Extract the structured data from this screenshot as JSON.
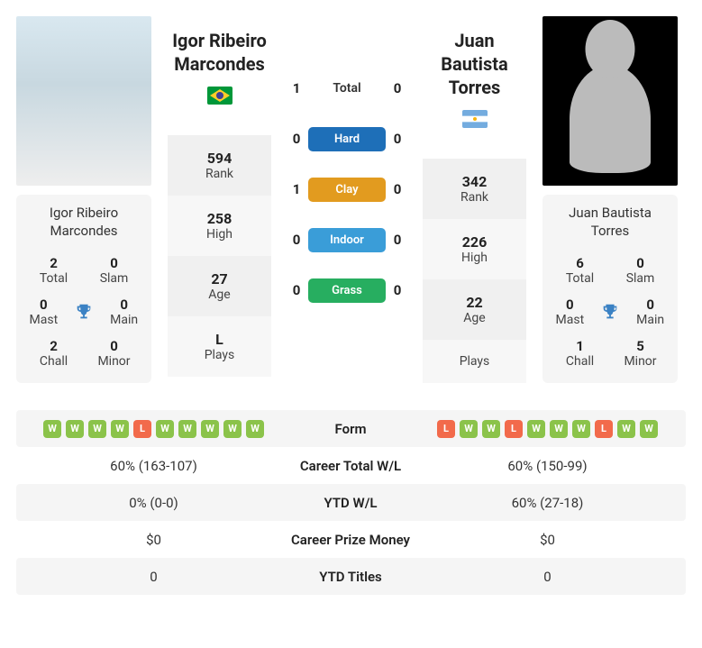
{
  "player1": {
    "name": "Igor Ribeiro Marcondes",
    "flag": {
      "country": "brazil",
      "colors": {
        "green": "#009739",
        "yellow": "#ffcc29",
        "blue": "#3e4095"
      }
    },
    "titles": {
      "total": 2,
      "slam": 0,
      "mast": 0,
      "main": 0,
      "chall": 2,
      "minor": 0
    },
    "rank": 594,
    "high": 258,
    "age": 27,
    "plays": "L",
    "form": [
      "W",
      "W",
      "W",
      "W",
      "L",
      "W",
      "W",
      "W",
      "W",
      "W"
    ],
    "career_wl": "60% (163-107)",
    "ytd_wl": "0% (0-0)",
    "career_prize": "$0",
    "ytd_titles": 0
  },
  "player2": {
    "name": "Juan Bautista Torres",
    "flag": {
      "country": "argentina",
      "colors": {
        "blue": "#74acdf",
        "white": "#ffffff",
        "sun": "#f6b40e"
      }
    },
    "titles": {
      "total": 6,
      "slam": 0,
      "mast": 0,
      "main": 0,
      "chall": 1,
      "minor": 5
    },
    "rank": 342,
    "high": 226,
    "age": 22,
    "plays": "",
    "form": [
      "L",
      "W",
      "W",
      "L",
      "W",
      "W",
      "W",
      "L",
      "W",
      "W"
    ],
    "career_wl": "60% (150-99)",
    "ytd_wl": "60% (27-18)",
    "career_prize": "$0",
    "ytd_titles": 0
  },
  "h2h": {
    "total": {
      "p1": 1,
      "p2": 0,
      "label": "Total"
    },
    "hard": {
      "p1": 0,
      "p2": 0,
      "label": "Hard"
    },
    "clay": {
      "p1": 1,
      "p2": 0,
      "label": "Clay"
    },
    "indoor": {
      "p1": 0,
      "p2": 0,
      "label": "Indoor"
    },
    "grass": {
      "p1": 0,
      "p2": 0,
      "label": "Grass"
    }
  },
  "labels": {
    "total": "Total",
    "slam": "Slam",
    "mast": "Mast",
    "main": "Main",
    "chall": "Chall",
    "minor": "Minor",
    "rank": "Rank",
    "high": "High",
    "age": "Age",
    "plays": "Plays",
    "form": "Form",
    "career_wl": "Career Total W/L",
    "ytd_wl": "YTD W/L",
    "career_prize": "Career Prize Money",
    "ytd_titles": "YTD Titles"
  },
  "styling": {
    "colors": {
      "bg_light": "#f5f5f5",
      "bg_lighter": "#f7f7f7",
      "win_badge": "#8bc34a",
      "loss_badge": "#f26a4b",
      "trophy": "#3b82c4"
    }
  }
}
